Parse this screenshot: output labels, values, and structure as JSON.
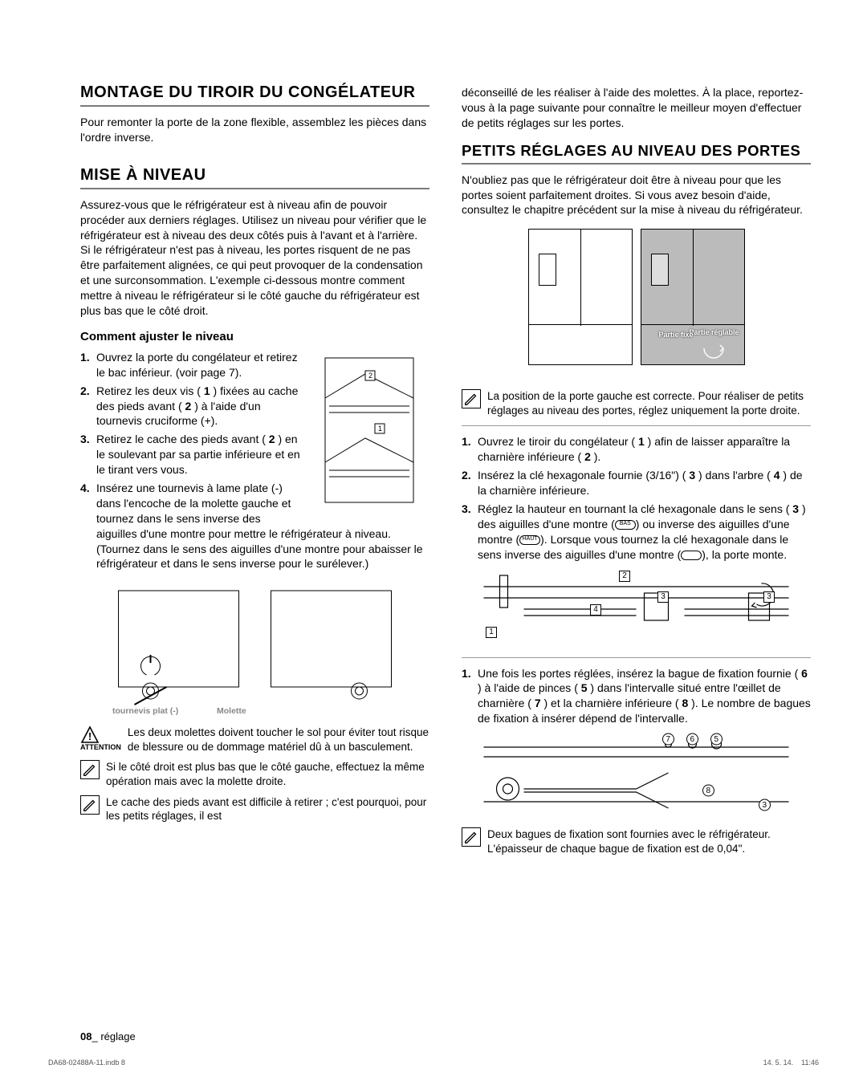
{
  "left": {
    "sec1": {
      "title": "MONTAGE DU TIROIR DU CONGÉLATEUR",
      "body": "Pour remonter la porte de la zone flexible, assemblez les pièces dans l'ordre inverse."
    },
    "sec2": {
      "title": "MISE À NIVEAU",
      "body": "Assurez-vous que le réfrigérateur est à niveau afin de pouvoir procéder aux derniers réglages. Utilisez un niveau pour vérifier que le réfrigérateur est à niveau des deux côtés puis à l'avant et à l'arrière. Si le réfrigérateur n'est pas à niveau, les portes risquent de ne pas être parfaitement alignées, ce qui peut provoquer de la condensation et une surconsommation. L'exemple ci-dessous montre comment mettre à niveau le réfrigérateur si le côté gauche du réfrigérateur est plus bas que le côté droit.",
      "sub": "Comment ajuster le niveau",
      "steps": [
        "Ouvrez la porte du congélateur et retirez le bac inférieur. (voir page 7).",
        "Retirez les deux vis ( 1 ) fixées au cache des pieds avant ( 2 ) à l'aide d'un tournevis cruciforme (+).",
        "Retirez le cache des pieds avant ( 2 ) en le soulevant par sa partie inférieure et en le tirant vers vous.",
        "Insérez une tournevis à lame plate (-) dans l'encoche de la molette gauche et tournez dans le sens inverse des aiguilles d'une montre pour mettre le réfrigérateur à niveau. (Tournez dans le sens des aiguilles d'une montre pour abaisser le réfrigérateur et dans le sens inverse pour le surélever.)"
      ],
      "fig_labels": {
        "a": "tournevis plat (-)",
        "b": "Molette"
      },
      "attn_label": "ATTENTION",
      "attn": "Les deux molettes doivent toucher le sol pour éviter tout risque de blessure ou de dommage matériel dû à un basculement.",
      "note1": "Si le côté droit est plus bas que le côté gauche, effectuez la même opération mais avec la molette droite.",
      "note2": "Le cache des pieds avant est difficile à retirer ; c'est pourquoi, pour les petits réglages, il est"
    }
  },
  "right": {
    "cont": "déconseillé de les réaliser à l'aide des molettes. À la place, reportez-vous à la page suivante pour connaître le meilleur moyen d'effectuer de petits réglages sur les portes.",
    "sec3": {
      "title": "PETITS RÉGLAGES AU NIVEAU DES PORTES",
      "body": "N'oubliez pas que le réfrigérateur doit être à niveau pour que les portes soient parfaitement droites. Si vous avez besoin d'aide, consultez le chapitre précédent sur la mise à niveau du réfrigérateur.",
      "diag": {
        "fix": "Partie fixe",
        "adj": "Partie réglable"
      },
      "note1": "La position de la porte gauche est correcte. Pour réaliser de petits réglages au niveau des portes, réglez uniquement la porte droite.",
      "stepsA": [
        "Ouvrez le tiroir du congélateur ( 1 ) afin de laisser apparaître la charnière inférieure ( 2 ).",
        "Insérez la clé hexagonale fournie (3/16\") ( 3 ) dans l'arbre ( 4 ) de la charnière inférieure.",
        "Réglez la hauteur en tournant la clé hexagonale dans le sens ( 3 ) des aiguilles d'une montre (        ) ou inverse des aiguilles d'une montre (        ). Lorsque vous tournez la clé hexagonale dans le sens inverse des aiguilles d'une montre (      ), la porte monte."
      ],
      "icon_bas": "BAS",
      "icon_haut": "HAUT",
      "stepsB": [
        "Une fois les portes réglées, insérez la bague de fixation fournie ( 6 ) à l'aide de pinces ( 5 ) dans l'intervalle situé entre l'œillet de charnière ( 7 ) et la charnière inférieure ( 8 ). Le nombre de bagues de fixation à insérer dépend de l'intervalle."
      ],
      "note2": "Deux bagues de fixation sont fournies avec le réfrigérateur. L'épaisseur de chaque bague de fixation est de 0,04\"."
    }
  },
  "footer": {
    "pg": "08",
    "sect": "réglage",
    "file": "DA68-02488A-11.indb   8",
    "ts": "14. 5. 14.      11:46"
  }
}
